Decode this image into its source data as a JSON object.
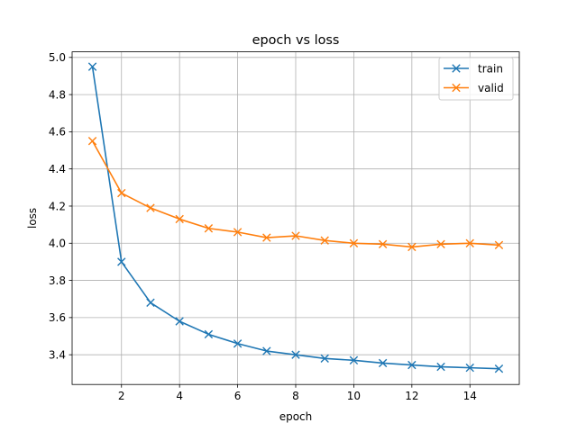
{
  "chart_data": {
    "type": "line",
    "title": "epoch vs loss",
    "xlabel": "epoch",
    "ylabel": "loss",
    "xlim": [
      0.3,
      15.7
    ],
    "ylim": [
      3.24,
      5.03
    ],
    "xticks": [
      2,
      4,
      6,
      8,
      10,
      12,
      14
    ],
    "yticks": [
      3.4,
      3.6,
      3.8,
      4.0,
      4.2,
      4.4,
      4.6,
      4.8,
      5.0
    ],
    "xtick_labels": [
      "2",
      "4",
      "6",
      "8",
      "10",
      "12",
      "14"
    ],
    "ytick_labels": [
      "3.4",
      "3.6",
      "3.8",
      "4.0",
      "4.2",
      "4.4",
      "4.6",
      "4.8",
      "5.0"
    ],
    "grid": true,
    "legend_position": "top-right",
    "marker": "x",
    "x": [
      1,
      2,
      3,
      4,
      5,
      6,
      7,
      8,
      9,
      10,
      11,
      12,
      13,
      14,
      15
    ],
    "series": [
      {
        "name": "train",
        "color": "#1f77b4",
        "values": [
          4.95,
          3.9,
          3.68,
          3.58,
          3.51,
          3.46,
          3.42,
          3.4,
          3.38,
          3.37,
          3.355,
          3.345,
          3.335,
          3.33,
          3.325
        ]
      },
      {
        "name": "valid",
        "color": "#ff7f0e",
        "values": [
          4.55,
          4.27,
          4.19,
          4.13,
          4.08,
          4.06,
          4.03,
          4.04,
          4.015,
          4.0,
          3.995,
          3.98,
          3.995,
          4.0,
          3.99
        ]
      }
    ]
  }
}
